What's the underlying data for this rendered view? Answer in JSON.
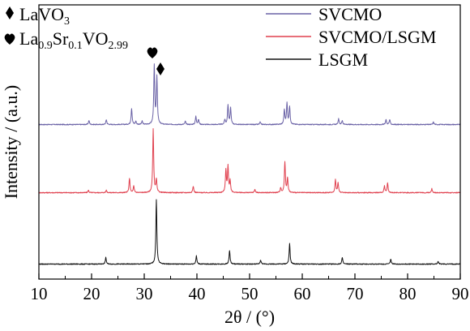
{
  "chart_data": {
    "type": "line",
    "xlabel": "2θ / (°)",
    "ylabel": "Intensity / (a.u.)",
    "xlim": [
      10,
      90
    ],
    "xticks": [
      10,
      20,
      30,
      40,
      50,
      60,
      70,
      80,
      90
    ],
    "yaxis_ticks_shown": false,
    "grid": false,
    "legend_placement": "top-right",
    "phase_annotations": [
      {
        "marker": "diamond",
        "main": "LaVO",
        "sub": "3",
        "peak_2theta": 33.0
      },
      {
        "marker": "heart",
        "main": "La",
        "sub1": "0.9",
        "mid": "Sr",
        "sub2": "0.1",
        "end": "VO",
        "sub3": "2.99",
        "peak_2theta": 31.5
      }
    ],
    "series": [
      {
        "name": "SVCMO",
        "color": "#6a62a6",
        "baseline": 0.5,
        "peaks": [
          [
            19.5,
            5
          ],
          [
            22.8,
            6
          ],
          [
            27.6,
            20
          ],
          [
            28.4,
            4
          ],
          [
            29.6,
            4
          ],
          [
            31.9,
            72
          ],
          [
            32.4,
            58
          ],
          [
            37.8,
            4
          ],
          [
            39.8,
            10
          ],
          [
            40.3,
            6
          ],
          [
            45.3,
            6
          ],
          [
            45.9,
            24
          ],
          [
            46.4,
            20
          ],
          [
            52.0,
            3
          ],
          [
            56.6,
            18
          ],
          [
            57.1,
            26
          ],
          [
            57.6,
            22
          ],
          [
            66.9,
            7
          ],
          [
            67.6,
            5
          ],
          [
            75.9,
            6
          ],
          [
            76.6,
            6
          ],
          [
            84.9,
            3
          ]
        ]
      },
      {
        "name": "SVCMO/LSGM",
        "color": "#e0414f",
        "baseline": 0.5,
        "peaks": [
          [
            19.4,
            3
          ],
          [
            22.8,
            3
          ],
          [
            27.2,
            18
          ],
          [
            28.0,
            8
          ],
          [
            31.7,
            78
          ],
          [
            32.3,
            16
          ],
          [
            39.3,
            8
          ],
          [
            45.5,
            28
          ],
          [
            45.9,
            32
          ],
          [
            46.3,
            14
          ],
          [
            51.0,
            4
          ],
          [
            55.9,
            6
          ],
          [
            56.7,
            38
          ],
          [
            57.2,
            18
          ],
          [
            66.3,
            16
          ],
          [
            66.8,
            12
          ],
          [
            75.6,
            8
          ],
          [
            76.2,
            12
          ],
          [
            84.6,
            5
          ]
        ]
      },
      {
        "name": "LSGM",
        "color": "#111111",
        "baseline": 0.5,
        "peaks": [
          [
            22.7,
            8
          ],
          [
            32.3,
            80
          ],
          [
            39.9,
            10
          ],
          [
            46.2,
            17
          ],
          [
            52.1,
            5
          ],
          [
            57.6,
            25
          ],
          [
            67.6,
            8
          ],
          [
            76.8,
            6
          ],
          [
            85.8,
            3
          ]
        ]
      }
    ]
  }
}
